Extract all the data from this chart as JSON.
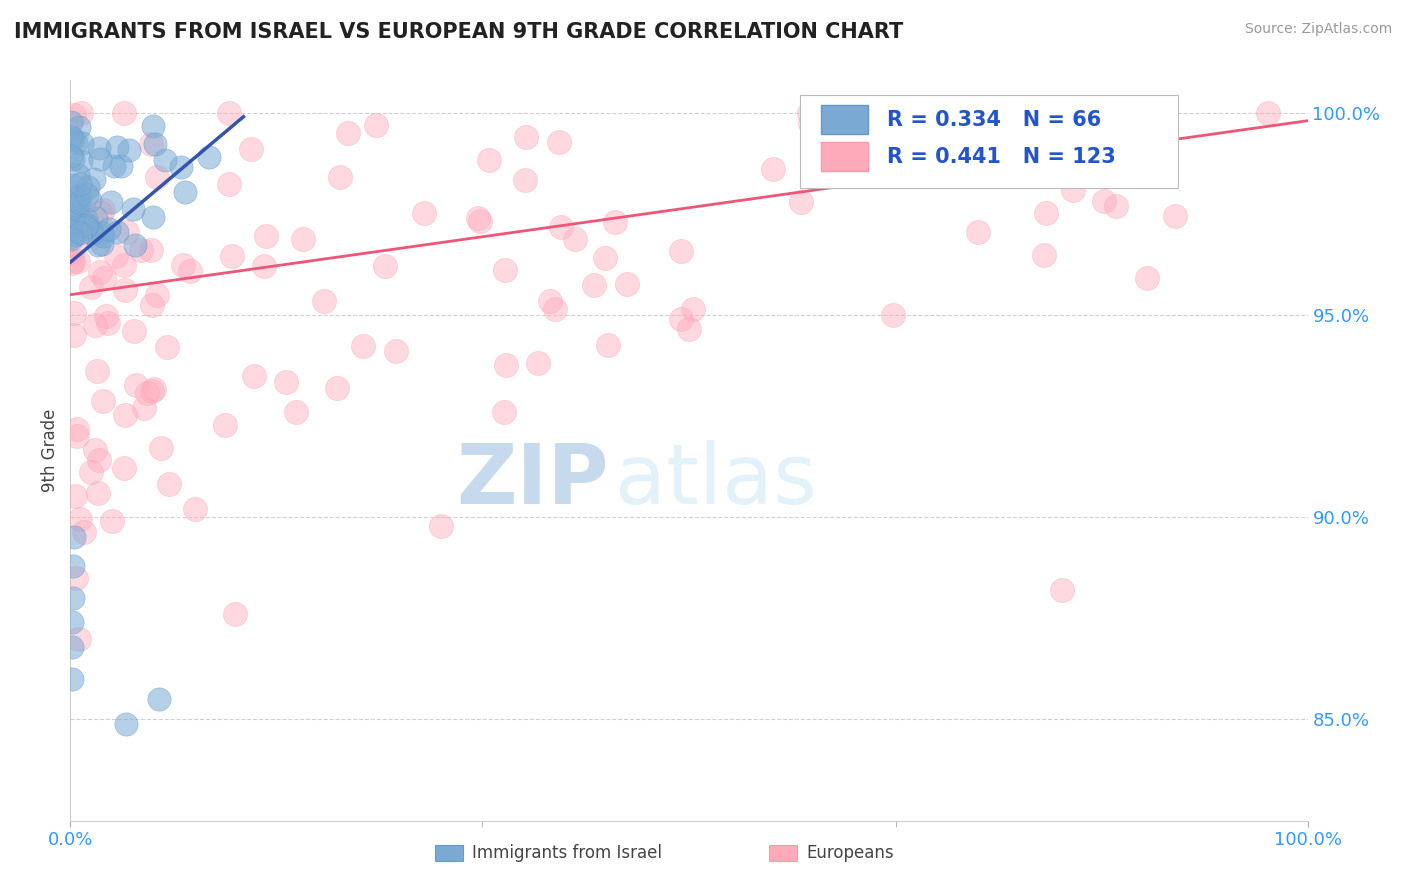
{
  "title": "IMMIGRANTS FROM ISRAEL VS EUROPEAN 9TH GRADE CORRELATION CHART",
  "source_text": "Source: ZipAtlas.com",
  "ylabel": "9th Grade",
  "r1": 0.334,
  "n1": 66,
  "r2": 0.441,
  "n2": 123,
  "color_blue": "#6699CC",
  "color_blue_fill": "#7AAAD4",
  "color_pink": "#FF99AA",
  "color_pink_fill": "#FFAABB",
  "color_blue_line": "#3355AA",
  "color_pink_line": "#EE5577",
  "watermark_zip": "#99BBDD",
  "watermark_atlas": "#BBDDEE",
  "legend_label_1": "Immigrants from Israel",
  "legend_label_2": "Europeans",
  "ymin": 0.825,
  "ymax": 1.008,
  "xmin": 0.0,
  "xmax": 1.0,
  "yticks": [
    0.85,
    0.9,
    0.95,
    1.0
  ],
  "ytick_labels": [
    "85.0%",
    "90.0%",
    "95.0%",
    "100.0%"
  ],
  "xticks": [
    0.0,
    1.0
  ],
  "xtick_labels": [
    "0.0%",
    "100.0%"
  ],
  "dashed_line_y": 0.855,
  "blue_seed": 12,
  "pink_seed": 99
}
